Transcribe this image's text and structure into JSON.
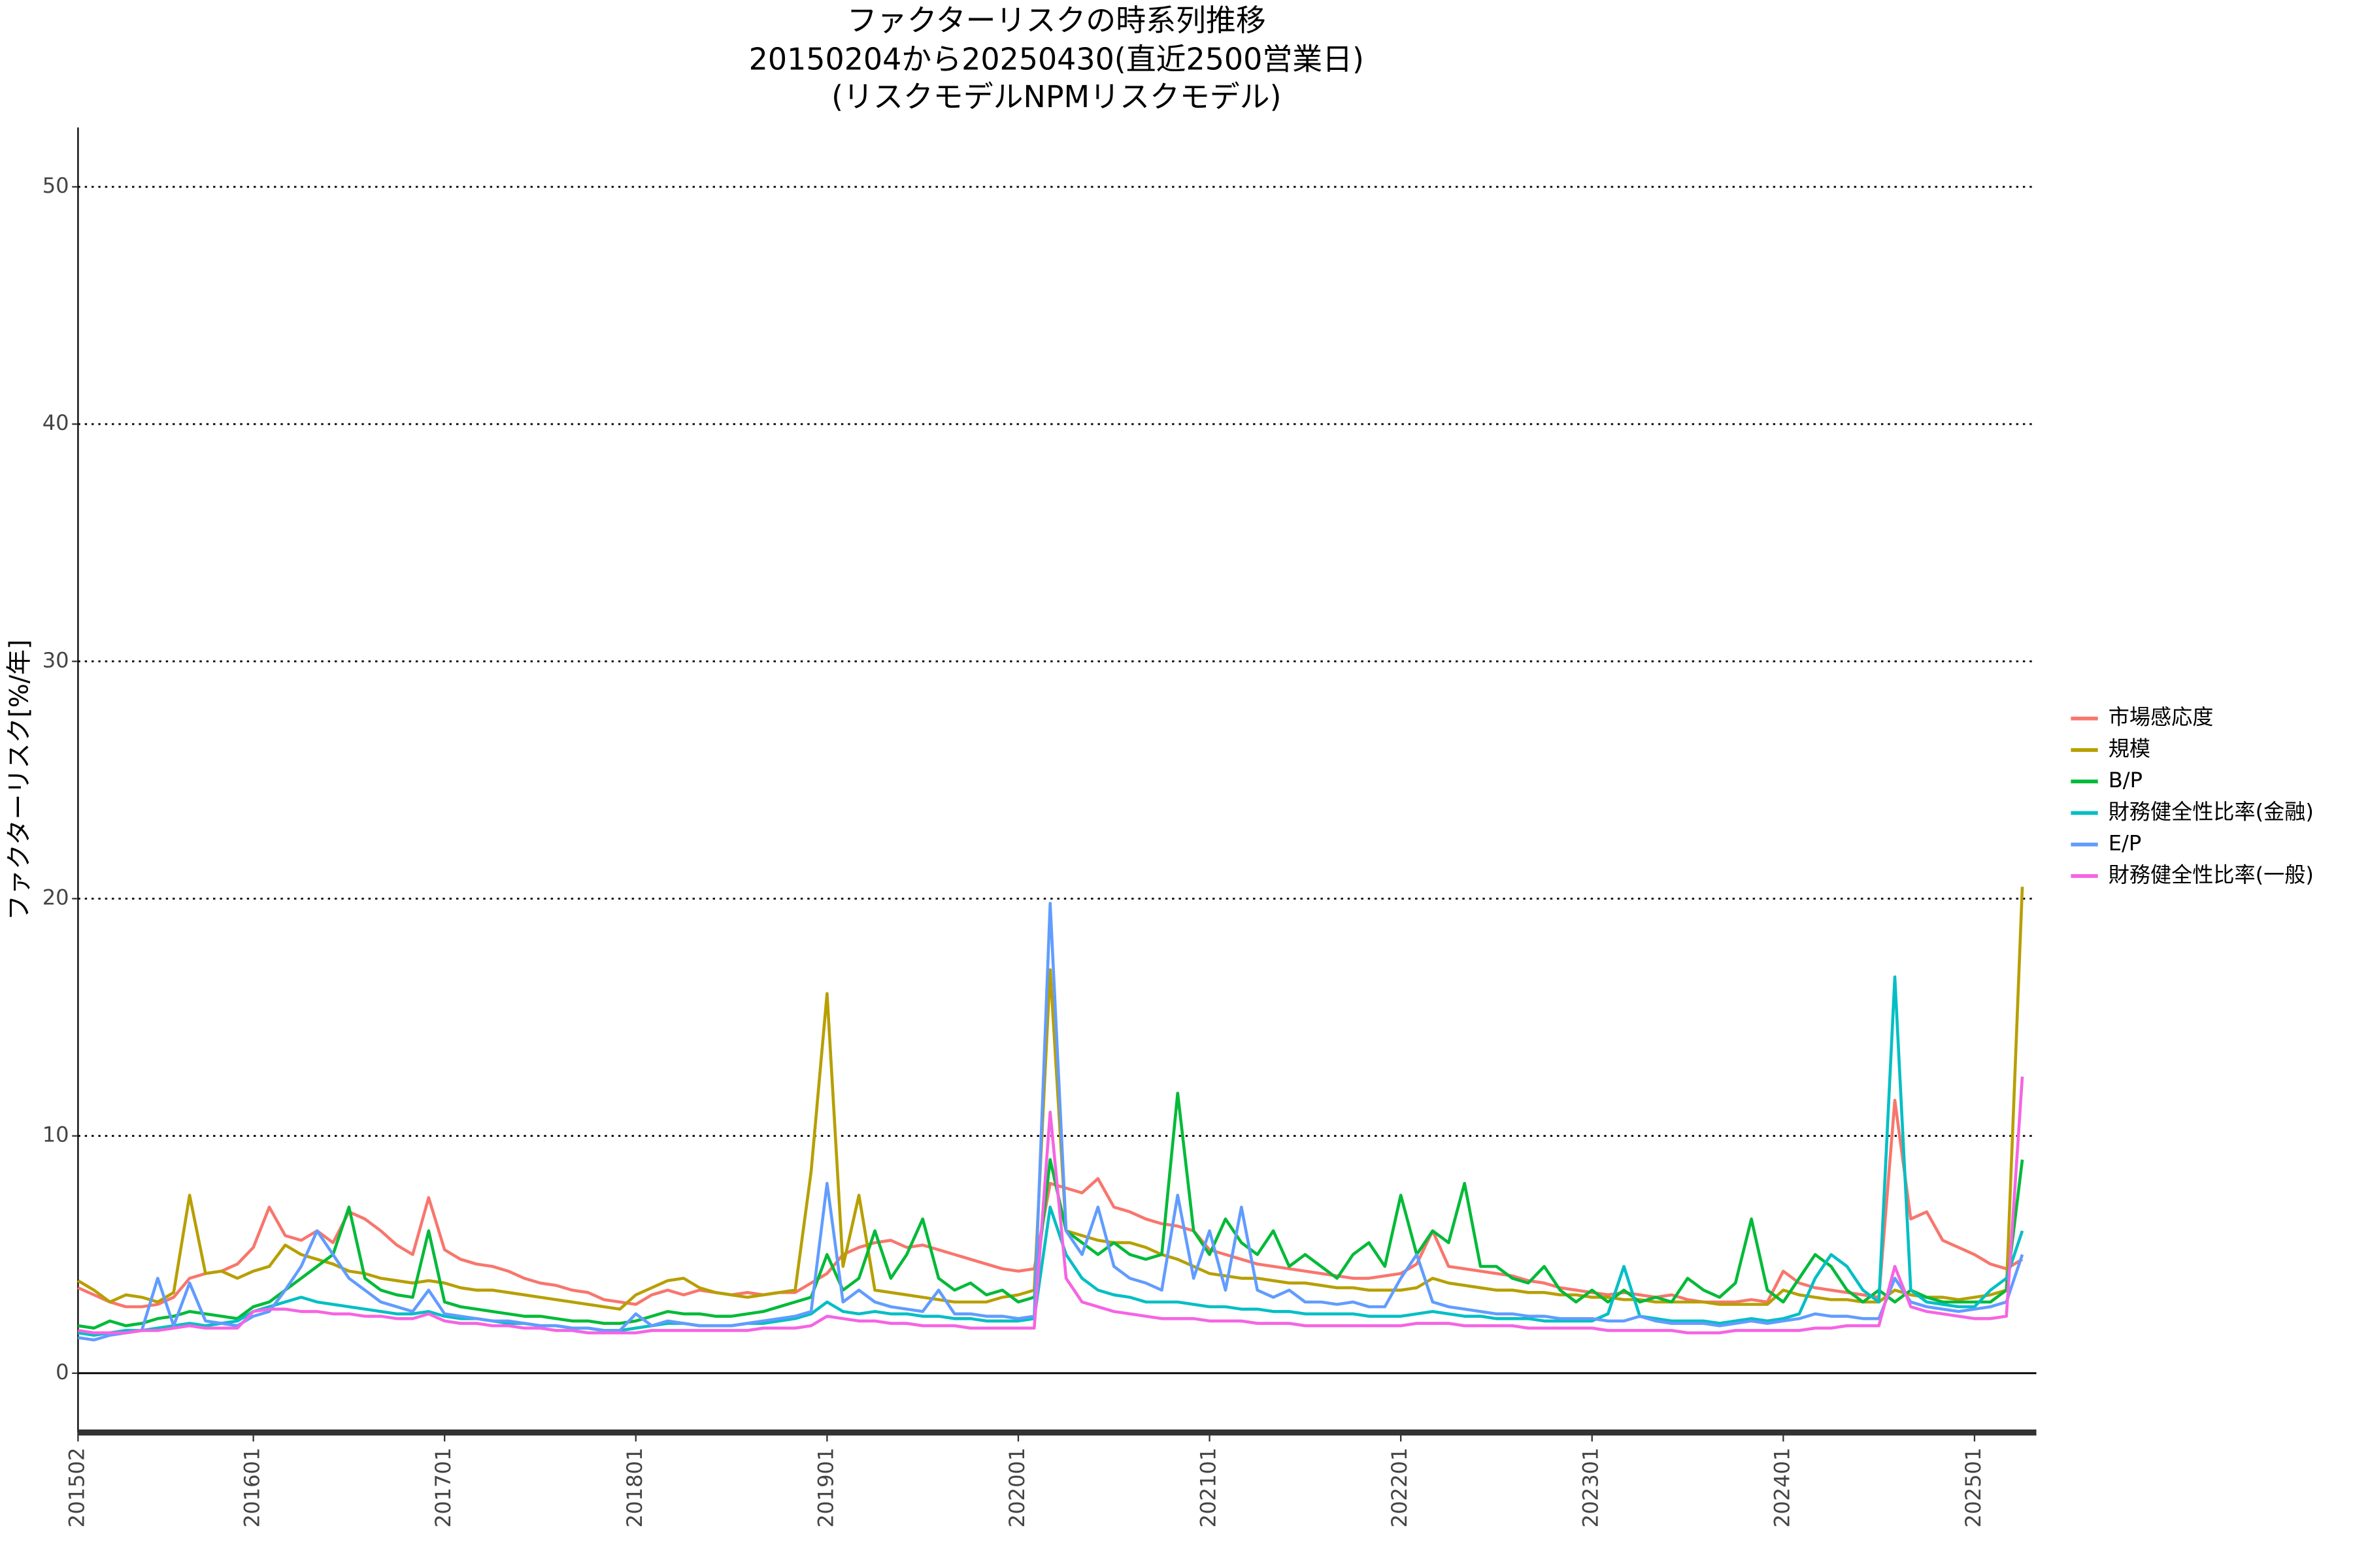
{
  "chart_data": {
    "type": "line",
    "title": [
      "ファクターリスクの時系列推移",
      "20150204から20250430(直近2500営業日)",
      "(リスクモデルNPMリスクモデル)"
    ],
    "y_label": "ファクターリスク[%/年]",
    "x": [
      "201502",
      "201503",
      "201504",
      "201505",
      "201506",
      "201507",
      "201508",
      "201509",
      "201510",
      "201511",
      "201512",
      "201601",
      "201602",
      "201603",
      "201604",
      "201605",
      "201606",
      "201607",
      "201608",
      "201609",
      "201610",
      "201611",
      "201612",
      "201701",
      "201702",
      "201703",
      "201704",
      "201705",
      "201706",
      "201707",
      "201708",
      "201709",
      "201710",
      "201711",
      "201712",
      "201801",
      "201802",
      "201803",
      "201804",
      "201805",
      "201806",
      "201807",
      "201808",
      "201809",
      "201810",
      "201811",
      "201812",
      "201901",
      "201902",
      "201903",
      "201904",
      "201905",
      "201906",
      "201907",
      "201908",
      "201909",
      "201910",
      "201911",
      "201912",
      "202001",
      "202002",
      "202003",
      "202004",
      "202005",
      "202006",
      "202007",
      "202008",
      "202009",
      "202010",
      "202011",
      "202012",
      "202101",
      "202102",
      "202103",
      "202104",
      "202105",
      "202106",
      "202107",
      "202108",
      "202109",
      "202110",
      "202111",
      "202112",
      "202201",
      "202202",
      "202203",
      "202204",
      "202205",
      "202206",
      "202207",
      "202208",
      "202209",
      "202210",
      "202211",
      "202212",
      "202301",
      "202302",
      "202303",
      "202304",
      "202305",
      "202306",
      "202307",
      "202308",
      "202309",
      "202310",
      "202311",
      "202312",
      "202401",
      "202402",
      "202403",
      "202404",
      "202405",
      "202406",
      "202407",
      "202408",
      "202409",
      "202410",
      "202411",
      "202412",
      "202501",
      "202502",
      "202503",
      "202504"
    ],
    "xticks": [
      "201502",
      "201601",
      "201701",
      "201801",
      "201901",
      "202001",
      "202101",
      "202201",
      "202301",
      "202401",
      "202501"
    ],
    "ylim": [
      -2.5,
      52.5
    ],
    "yticks": [
      0,
      10,
      20,
      30,
      40,
      50
    ],
    "grid": true,
    "legend": "right",
    "series": [
      {
        "name": "市場感応度",
        "color": "#F8766D",
        "values": [
          3.6,
          3.3,
          3.0,
          2.8,
          2.8,
          2.9,
          3.2,
          4.0,
          4.2,
          4.3,
          4.6,
          5.3,
          7.0,
          5.8,
          5.6,
          6.0,
          5.5,
          6.8,
          6.5,
          6.0,
          5.4,
          5.0,
          7.4,
          5.2,
          4.8,
          4.6,
          4.5,
          4.3,
          4.0,
          3.8,
          3.7,
          3.5,
          3.4,
          3.1,
          3.0,
          2.9,
          3.3,
          3.5,
          3.3,
          3.5,
          3.4,
          3.3,
          3.4,
          3.3,
          3.4,
          3.4,
          3.8,
          4.2,
          5.0,
          5.3,
          5.5,
          5.6,
          5.3,
          5.4,
          5.2,
          5.0,
          4.8,
          4.6,
          4.4,
          4.3,
          4.4,
          8.0,
          7.8,
          7.6,
          8.2,
          7.0,
          6.8,
          6.5,
          6.3,
          6.2,
          6.0,
          5.2,
          5.0,
          4.8,
          4.6,
          4.5,
          4.4,
          4.3,
          4.2,
          4.1,
          4.0,
          4.0,
          4.1,
          4.2,
          4.6,
          6.0,
          4.5,
          4.4,
          4.3,
          4.2,
          4.1,
          3.9,
          3.8,
          3.6,
          3.5,
          3.4,
          3.3,
          3.4,
          3.3,
          3.2,
          3.3,
          3.1,
          3.0,
          3.0,
          3.0,
          3.1,
          3.0,
          4.3,
          3.8,
          3.6,
          3.5,
          3.4,
          3.3,
          3.2,
          11.5,
          6.5,
          6.8,
          5.6,
          5.3,
          5.0,
          4.6,
          4.4,
          4.8
        ]
      },
      {
        "name": "規模",
        "color": "#B79F00",
        "values": [
          3.9,
          3.5,
          3.0,
          3.3,
          3.2,
          3.0,
          3.4,
          7.5,
          4.2,
          4.3,
          4.0,
          4.3,
          4.5,
          5.4,
          5.0,
          4.8,
          4.6,
          4.3,
          4.2,
          4.0,
          3.9,
          3.8,
          3.9,
          3.8,
          3.6,
          3.5,
          3.5,
          3.4,
          3.3,
          3.2,
          3.1,
          3.0,
          2.9,
          2.8,
          2.7,
          3.3,
          3.6,
          3.9,
          4.0,
          3.6,
          3.4,
          3.3,
          3.2,
          3.3,
          3.4,
          3.5,
          8.5,
          16.0,
          4.5,
          7.5,
          3.5,
          3.4,
          3.3,
          3.2,
          3.1,
          3.0,
          3.0,
          3.0,
          3.2,
          3.3,
          3.5,
          17.0,
          6.0,
          5.8,
          5.6,
          5.5,
          5.5,
          5.3,
          5.0,
          4.8,
          4.5,
          4.2,
          4.1,
          4.0,
          4.0,
          3.9,
          3.8,
          3.8,
          3.7,
          3.6,
          3.6,
          3.5,
          3.5,
          3.5,
          3.6,
          4.0,
          3.8,
          3.7,
          3.6,
          3.5,
          3.5,
          3.4,
          3.4,
          3.3,
          3.3,
          3.2,
          3.2,
          3.1,
          3.1,
          3.0,
          3.0,
          3.0,
          3.0,
          2.9,
          2.9,
          2.9,
          2.9,
          3.5,
          3.3,
          3.2,
          3.1,
          3.1,
          3.0,
          3.0,
          3.5,
          3.3,
          3.2,
          3.2,
          3.1,
          3.2,
          3.3,
          3.5,
          20.5
        ]
      },
      {
        "name": "B/P",
        "color": "#00BA38",
        "values": [
          2.0,
          1.9,
          2.2,
          2.0,
          2.1,
          2.3,
          2.4,
          2.6,
          2.5,
          2.4,
          2.3,
          2.8,
          3.0,
          3.5,
          4.0,
          4.5,
          5.0,
          7.0,
          4.0,
          3.5,
          3.3,
          3.2,
          6.0,
          3.0,
          2.8,
          2.7,
          2.6,
          2.5,
          2.4,
          2.4,
          2.3,
          2.2,
          2.2,
          2.1,
          2.1,
          2.2,
          2.4,
          2.6,
          2.5,
          2.5,
          2.4,
          2.4,
          2.5,
          2.6,
          2.8,
          3.0,
          3.2,
          5.0,
          3.5,
          4.0,
          6.0,
          4.0,
          5.0,
          6.5,
          4.0,
          3.5,
          3.8,
          3.3,
          3.5,
          3.0,
          3.2,
          9.0,
          6.0,
          5.5,
          5.0,
          5.5,
          5.0,
          4.8,
          5.0,
          11.8,
          6.0,
          5.0,
          6.5,
          5.5,
          5.0,
          6.0,
          4.5,
          5.0,
          4.5,
          4.0,
          5.0,
          5.5,
          4.5,
          7.5,
          5.0,
          6.0,
          5.5,
          8.0,
          4.5,
          4.5,
          4.0,
          3.8,
          4.5,
          3.5,
          3.0,
          3.5,
          3.0,
          3.5,
          3.0,
          3.2,
          3.0,
          4.0,
          3.5,
          3.2,
          3.8,
          6.5,
          3.5,
          3.0,
          4.0,
          5.0,
          4.5,
          3.5,
          3.0,
          3.5,
          3.0,
          3.5,
          3.2,
          3.0,
          3.0,
          3.0,
          3.0,
          3.5,
          9.0
        ]
      },
      {
        "name": "財務健全性比率(金融)",
        "color": "#00BFC4",
        "values": [
          1.7,
          1.6,
          1.7,
          1.8,
          1.8,
          1.9,
          2.0,
          2.1,
          2.0,
          2.1,
          2.2,
          2.6,
          2.8,
          3.0,
          3.2,
          3.0,
          2.9,
          2.8,
          2.7,
          2.6,
          2.5,
          2.5,
          2.6,
          2.4,
          2.3,
          2.3,
          2.2,
          2.1,
          2.1,
          2.0,
          2.0,
          1.9,
          1.9,
          1.8,
          1.8,
          1.9,
          2.0,
          2.1,
          2.1,
          2.0,
          2.0,
          2.0,
          2.1,
          2.1,
          2.2,
          2.3,
          2.5,
          3.0,
          2.6,
          2.5,
          2.6,
          2.5,
          2.5,
          2.4,
          2.4,
          2.3,
          2.3,
          2.2,
          2.2,
          2.2,
          2.3,
          7.0,
          5.0,
          4.0,
          3.5,
          3.3,
          3.2,
          3.0,
          3.0,
          3.0,
          2.9,
          2.8,
          2.8,
          2.7,
          2.7,
          2.6,
          2.6,
          2.5,
          2.5,
          2.5,
          2.5,
          2.4,
          2.4,
          2.4,
          2.5,
          2.6,
          2.5,
          2.4,
          2.4,
          2.3,
          2.3,
          2.3,
          2.2,
          2.2,
          2.2,
          2.2,
          2.5,
          4.5,
          2.4,
          2.3,
          2.2,
          2.2,
          2.2,
          2.1,
          2.2,
          2.3,
          2.2,
          2.3,
          2.5,
          4.0,
          5.0,
          4.5,
          3.5,
          3.0,
          16.7,
          3.5,
          3.0,
          2.9,
          2.8,
          2.8,
          3.5,
          4.0,
          6.0
        ]
      },
      {
        "name": "E/P",
        "color": "#619CFF",
        "values": [
          1.5,
          1.4,
          1.6,
          1.7,
          1.8,
          4.0,
          2.0,
          3.8,
          2.2,
          2.1,
          2.0,
          2.4,
          2.6,
          3.5,
          4.5,
          6.0,
          5.0,
          4.0,
          3.5,
          3.0,
          2.8,
          2.6,
          3.5,
          2.5,
          2.4,
          2.3,
          2.2,
          2.2,
          2.1,
          2.0,
          2.0,
          1.9,
          1.9,
          1.8,
          1.8,
          2.5,
          2.0,
          2.2,
          2.1,
          2.0,
          2.0,
          2.0,
          2.1,
          2.2,
          2.3,
          2.4,
          2.6,
          8.0,
          3.0,
          3.5,
          3.0,
          2.8,
          2.7,
          2.6,
          3.5,
          2.5,
          2.5,
          2.4,
          2.4,
          2.3,
          2.4,
          19.8,
          6.0,
          5.0,
          7.0,
          4.5,
          4.0,
          3.8,
          3.5,
          7.5,
          4.0,
          6.0,
          3.5,
          7.0,
          3.5,
          3.2,
          3.5,
          3.0,
          3.0,
          2.9,
          3.0,
          2.8,
          2.8,
          4.0,
          5.0,
          3.0,
          2.8,
          2.7,
          2.6,
          2.5,
          2.5,
          2.4,
          2.4,
          2.3,
          2.3,
          2.3,
          2.2,
          2.2,
          2.4,
          2.2,
          2.1,
          2.1,
          2.1,
          2.0,
          2.1,
          2.2,
          2.1,
          2.2,
          2.3,
          2.5,
          2.4,
          2.4,
          2.3,
          2.3,
          4.0,
          3.0,
          2.8,
          2.7,
          2.6,
          2.7,
          2.8,
          3.0,
          5.0
        ]
      },
      {
        "name": "財務健全性比率(一般)",
        "color": "#F564E3",
        "values": [
          1.8,
          1.7,
          1.7,
          1.7,
          1.8,
          1.8,
          1.9,
          2.0,
          1.9,
          1.9,
          1.9,
          2.6,
          2.7,
          2.7,
          2.6,
          2.6,
          2.5,
          2.5,
          2.4,
          2.4,
          2.3,
          2.3,
          2.5,
          2.2,
          2.1,
          2.1,
          2.0,
          2.0,
          1.9,
          1.9,
          1.8,
          1.8,
          1.7,
          1.7,
          1.7,
          1.7,
          1.8,
          1.8,
          1.8,
          1.8,
          1.8,
          1.8,
          1.8,
          1.9,
          1.9,
          1.9,
          2.0,
          2.4,
          2.3,
          2.2,
          2.2,
          2.1,
          2.1,
          2.0,
          2.0,
          2.0,
          1.9,
          1.9,
          1.9,
          1.9,
          1.9,
          11.0,
          4.0,
          3.0,
          2.8,
          2.6,
          2.5,
          2.4,
          2.3,
          2.3,
          2.3,
          2.2,
          2.2,
          2.2,
          2.1,
          2.1,
          2.1,
          2.0,
          2.0,
          2.0,
          2.0,
          2.0,
          2.0,
          2.0,
          2.1,
          2.1,
          2.1,
          2.0,
          2.0,
          2.0,
          2.0,
          1.9,
          1.9,
          1.9,
          1.9,
          1.9,
          1.8,
          1.8,
          1.8,
          1.8,
          1.8,
          1.7,
          1.7,
          1.7,
          1.8,
          1.8,
          1.8,
          1.8,
          1.8,
          1.9,
          1.9,
          2.0,
          2.0,
          2.0,
          4.5,
          2.8,
          2.6,
          2.5,
          2.4,
          2.3,
          2.3,
          2.4,
          12.5
        ]
      }
    ]
  }
}
